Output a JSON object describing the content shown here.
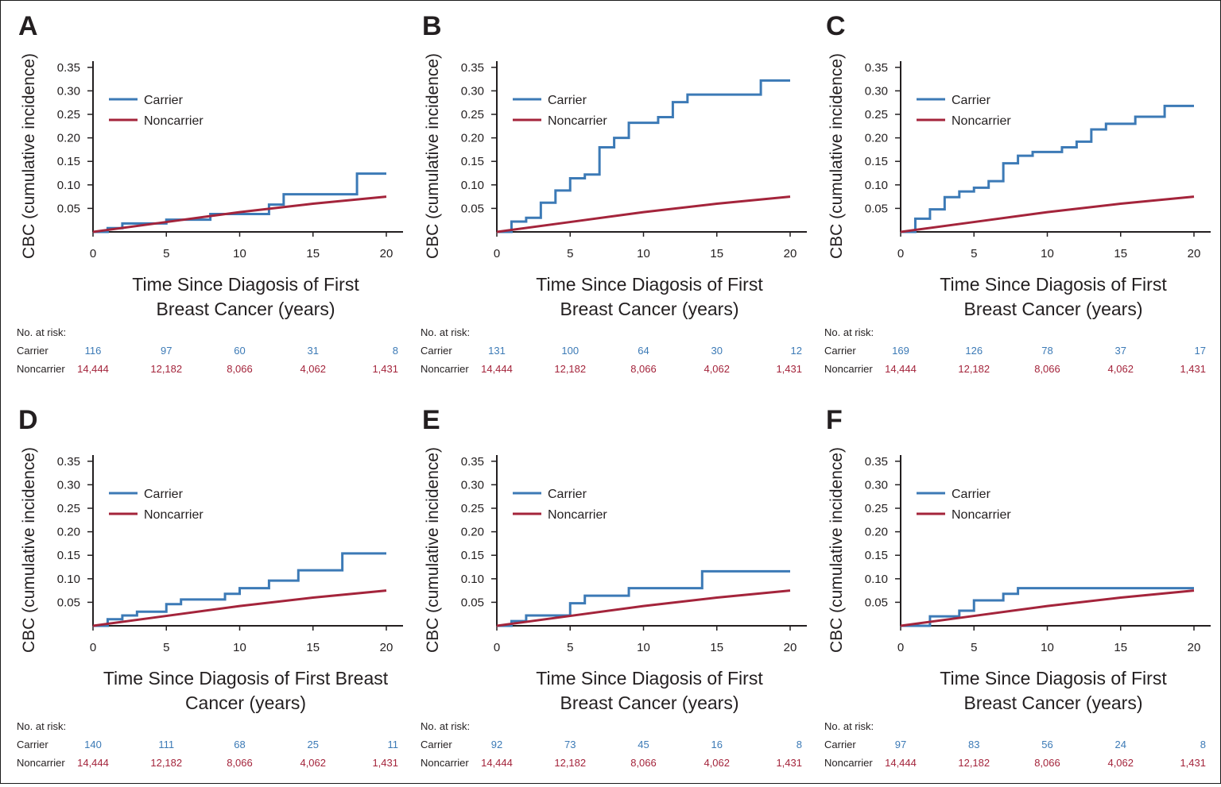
{
  "colors": {
    "carrier": "#3c7ab6",
    "noncarrier": "#a4243b",
    "axis": "#231f20"
  },
  "common": {
    "ylabel": "CBC (cumulative incidence)",
    "x_ticks": [
      "0",
      "5",
      "10",
      "15",
      "20"
    ],
    "y_ticks": [
      "0.35",
      "0.30",
      "0.25",
      "0.20",
      "0.15",
      "0.10",
      "0.05"
    ],
    "legend": [
      "Carrier",
      "Noncarrier"
    ],
    "risk_title": "No. at risk:",
    "risk_rows": [
      "Carrier",
      "Noncarrier"
    ]
  },
  "chart_data": [
    {
      "type": "line",
      "panel": "A",
      "xlabel": [
        "Time Since Diagosis of First",
        "Breast Cancer (years)"
      ],
      "ylabel": "CBC (cumulative incidence)",
      "xlim": [
        0,
        20
      ],
      "ylim": [
        0,
        0.35
      ],
      "legend_position": "top-left",
      "series": [
        {
          "name": "Carrier",
          "step": true,
          "x": [
            0,
            1,
            2,
            5,
            8,
            12,
            13,
            18,
            20
          ],
          "y": [
            0,
            0.008,
            0.018,
            0.026,
            0.038,
            0.058,
            0.08,
            0.124,
            0.124
          ]
        },
        {
          "name": "Noncarrier",
          "step": false,
          "x": [
            0,
            5,
            10,
            15,
            20
          ],
          "y": [
            0,
            0.021,
            0.042,
            0.06,
            0.075
          ]
        }
      ],
      "at_risk": {
        "Carrier": [
          "116",
          "97",
          "60",
          "31",
          "8"
        ],
        "Noncarrier": [
          "14,444",
          "12,182",
          "8,066",
          "4,062",
          "1,431"
        ]
      }
    },
    {
      "type": "line",
      "panel": "B",
      "xlabel": [
        "Time Since Diagosis of First",
        "Breast Cancer (years)"
      ],
      "ylabel": "CBC (cumulative incidence)",
      "xlim": [
        0,
        20
      ],
      "ylim": [
        0,
        0.35
      ],
      "legend_position": "top-left",
      "series": [
        {
          "name": "Carrier",
          "step": true,
          "x": [
            0,
            1,
            2,
            3,
            4,
            5,
            6,
            7,
            8,
            9,
            11,
            12,
            13,
            18,
            20
          ],
          "y": [
            0,
            0.022,
            0.03,
            0.062,
            0.088,
            0.114,
            0.122,
            0.18,
            0.2,
            0.232,
            0.244,
            0.276,
            0.292,
            0.322,
            0.322
          ]
        },
        {
          "name": "Noncarrier",
          "step": false,
          "x": [
            0,
            5,
            10,
            15,
            20
          ],
          "y": [
            0,
            0.021,
            0.042,
            0.06,
            0.075
          ]
        }
      ],
      "at_risk": {
        "Carrier": [
          "131",
          "100",
          "64",
          "30",
          "12"
        ],
        "Noncarrier": [
          "14,444",
          "12,182",
          "8,066",
          "4,062",
          "1,431"
        ]
      }
    },
    {
      "type": "line",
      "panel": "C",
      "xlabel": [
        "Time Since Diagosis of First",
        "Breast Cancer (years)"
      ],
      "ylabel": "CBC (cumulative incidence)",
      "xlim": [
        0,
        20
      ],
      "ylim": [
        0,
        0.35
      ],
      "legend_position": "top-left",
      "series": [
        {
          "name": "Carrier",
          "step": true,
          "x": [
            0,
            1,
            2,
            3,
            4,
            5,
            6,
            7,
            8,
            9,
            11,
            12,
            13,
            14,
            16,
            18,
            20
          ],
          "y": [
            0,
            0.028,
            0.048,
            0.074,
            0.086,
            0.094,
            0.108,
            0.146,
            0.162,
            0.17,
            0.18,
            0.192,
            0.218,
            0.23,
            0.245,
            0.268,
            0.268
          ]
        },
        {
          "name": "Noncarrier",
          "step": false,
          "x": [
            0,
            5,
            10,
            15,
            20
          ],
          "y": [
            0,
            0.021,
            0.042,
            0.06,
            0.075
          ]
        }
      ],
      "at_risk": {
        "Carrier": [
          "169",
          "126",
          "78",
          "37",
          "17"
        ],
        "Noncarrier": [
          "14,444",
          "12,182",
          "8,066",
          "4,062",
          "1,431"
        ]
      }
    },
    {
      "type": "line",
      "panel": "D",
      "xlabel": [
        "Time Since Diagosis of First Breast",
        "Cancer (years)"
      ],
      "ylabel": "CBC (cumulative incidence)",
      "xlim": [
        0,
        20
      ],
      "ylim": [
        0,
        0.35
      ],
      "legend_position": "top-left",
      "series": [
        {
          "name": "Carrier",
          "step": true,
          "x": [
            0,
            1,
            2,
            3,
            5,
            6,
            9,
            10,
            12,
            14,
            17,
            20
          ],
          "y": [
            0,
            0.014,
            0.022,
            0.03,
            0.046,
            0.056,
            0.068,
            0.08,
            0.096,
            0.118,
            0.154,
            0.154
          ]
        },
        {
          "name": "Noncarrier",
          "step": false,
          "x": [
            0,
            5,
            10,
            15,
            20
          ],
          "y": [
            0,
            0.021,
            0.042,
            0.06,
            0.075
          ]
        }
      ],
      "at_risk": {
        "Carrier": [
          "140",
          "111",
          "68",
          "25",
          "11"
        ],
        "Noncarrier": [
          "14,444",
          "12,182",
          "8,066",
          "4,062",
          "1,431"
        ]
      }
    },
    {
      "type": "line",
      "panel": "E",
      "xlabel": [
        "Time Since Diagosis of First",
        "Breast Cancer (years)"
      ],
      "ylabel": "CBC (cumulative incidence)",
      "xlim": [
        0,
        20
      ],
      "ylim": [
        0,
        0.35
      ],
      "legend_position": "top-left",
      "series": [
        {
          "name": "Carrier",
          "step": true,
          "x": [
            0,
            1,
            2,
            5,
            6,
            9,
            14,
            20
          ],
          "y": [
            0,
            0.01,
            0.022,
            0.048,
            0.064,
            0.08,
            0.116,
            0.116
          ]
        },
        {
          "name": "Noncarrier",
          "step": false,
          "x": [
            0,
            5,
            10,
            15,
            20
          ],
          "y": [
            0,
            0.021,
            0.042,
            0.06,
            0.075
          ]
        }
      ],
      "at_risk": {
        "Carrier": [
          "92",
          "73",
          "45",
          "16",
          "8"
        ],
        "Noncarrier": [
          "14,444",
          "12,182",
          "8,066",
          "4,062",
          "1,431"
        ]
      }
    },
    {
      "type": "line",
      "panel": "F",
      "xlabel": [
        "Time Since Diagosis of First",
        "Breast Cancer (years)"
      ],
      "ylabel": "CBC (cumulative incidence)",
      "xlim": [
        0,
        20
      ],
      "ylim": [
        0,
        0.35
      ],
      "legend_position": "top-left",
      "series": [
        {
          "name": "Carrier",
          "step": true,
          "x": [
            0,
            2,
            4,
            5,
            7,
            8,
            20
          ],
          "y": [
            0,
            0.02,
            0.032,
            0.054,
            0.068,
            0.08,
            0.08
          ]
        },
        {
          "name": "Noncarrier",
          "step": false,
          "x": [
            0,
            5,
            10,
            15,
            20
          ],
          "y": [
            0,
            0.021,
            0.042,
            0.06,
            0.075
          ]
        }
      ],
      "at_risk": {
        "Carrier": [
          "97",
          "83",
          "56",
          "24",
          "8"
        ],
        "Noncarrier": [
          "14,444",
          "12,182",
          "8,066",
          "4,062",
          "1,431"
        ]
      }
    }
  ]
}
